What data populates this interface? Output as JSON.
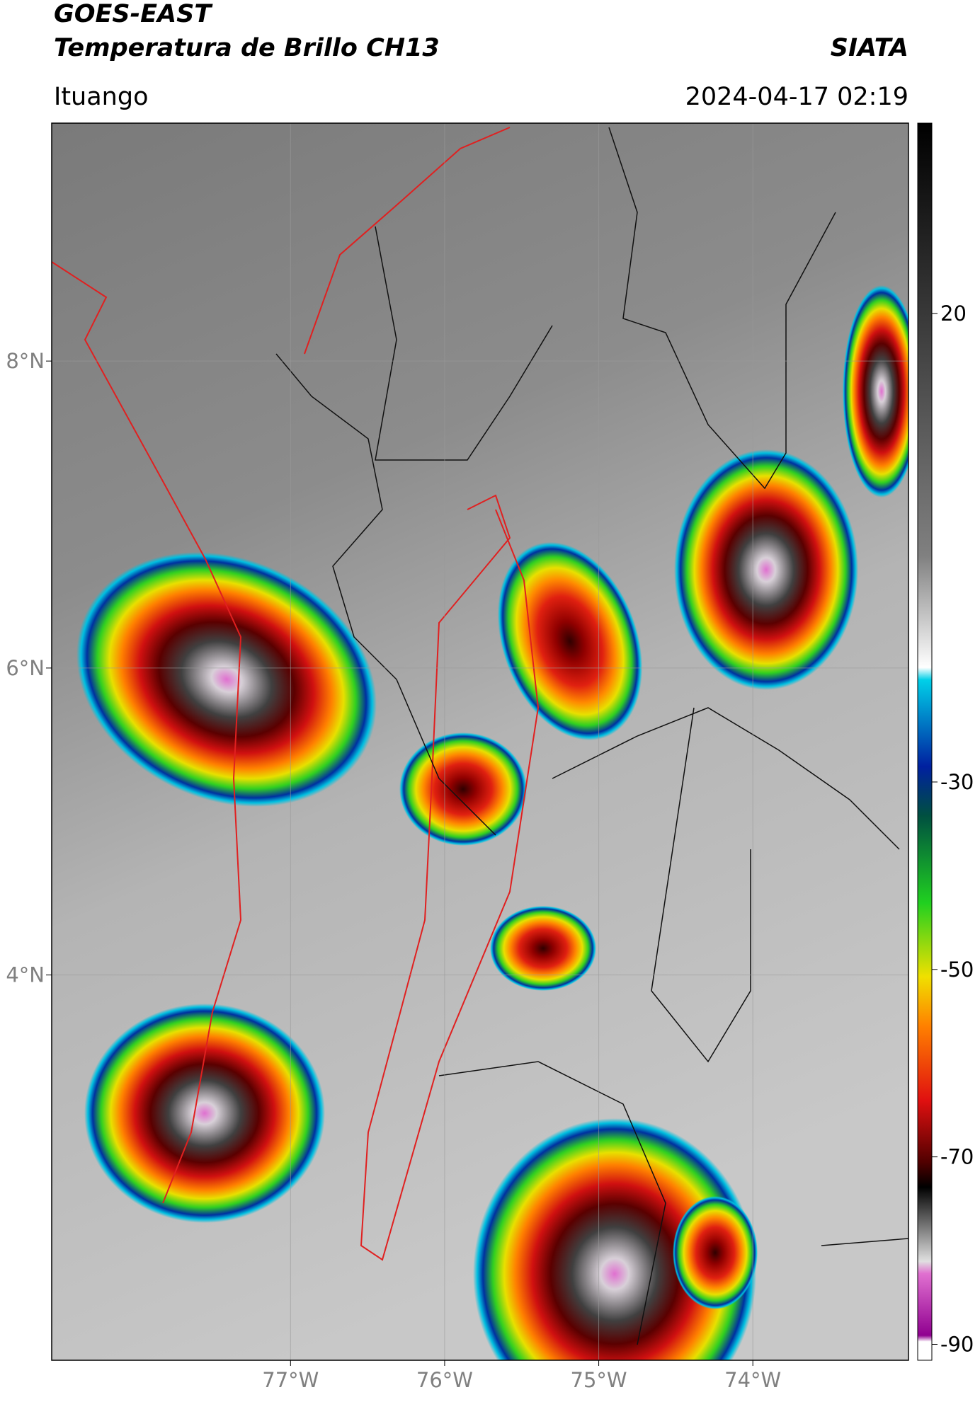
{
  "header": {
    "title": "GOES-EAST",
    "subtitle": "Temperatura de Brillo CH13",
    "agency": "SIATA",
    "region": "Ituango",
    "datetime": "2024-04-17 02:19"
  },
  "map": {
    "xlim": [
      -78.55,
      -72.99
    ],
    "ylim": [
      1.49,
      9.55
    ],
    "xticks": [
      {
        "value": -77,
        "label": "77°W"
      },
      {
        "value": -76,
        "label": "76°W"
      },
      {
        "value": -75,
        "label": "75°W"
      },
      {
        "value": -74,
        "label": "74°W"
      }
    ],
    "yticks": [
      {
        "value": 8,
        "label": "8°N"
      },
      {
        "value": 6,
        "label": "6°N"
      },
      {
        "value": 4,
        "label": "4°N"
      }
    ],
    "grid": true
  },
  "colorbar": {
    "lim": [
      -91.7,
      40.3
    ],
    "ticks": [
      20,
      -30,
      -50,
      -70,
      -90
    ]
  }
}
